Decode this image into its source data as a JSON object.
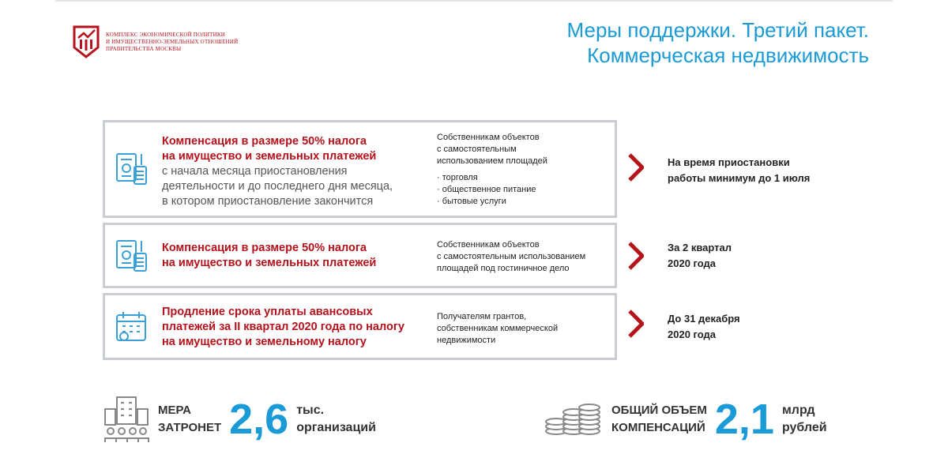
{
  "header": {
    "logo_text": [
      "Комплекс экономической политики",
      "и имущественно-земельных отношений",
      "правительства Москвы"
    ],
    "title_line1": "Меры поддержки. Третий пакет.",
    "title_line2": "Коммерческая недвижимость"
  },
  "colors": {
    "accent_red": "#b5121b",
    "accent_blue": "#1a9ad6",
    "border": "#c9ccd1"
  },
  "measures": [
    {
      "icon": "document-calculator-icon",
      "title": [
        "Компенсация в размере 50% налога",
        "на имущество и земельных платежей"
      ],
      "detail": [
        "с начала месяца приостановления",
        "деятельности и до последнего дня месяца,",
        "в котором приостановление закончится"
      ],
      "recipients": [
        "Собственникам объектов",
        "с самостоятельным",
        "использованием площадей"
      ],
      "bullets": [
        "· торговля",
        "· общественное питание",
        "· бытовые услуги"
      ],
      "term": [
        "На время приостановки",
        "работы минимум до 1 июля"
      ]
    },
    {
      "icon": "document-calculator-icon",
      "title": [
        "Компенсация в размере 50% налога",
        "на имущество и земельных платежей"
      ],
      "recipients": [
        "Собственникам объектов",
        "с самостоятельным использованием",
        "площадей под гостиничное дело"
      ],
      "term": [
        "За 2 квартал",
        "2020 года"
      ]
    },
    {
      "icon": "calendar-icon",
      "title": [
        "Продление срока уплаты авансовых",
        "платежей за II квартал 2020 года по налогу",
        "на имущество и земельному налогу"
      ],
      "recipients": [
        "Получателям грантов,",
        "собственникам коммерческой",
        "недвижимости"
      ],
      "term": [
        "До 31 декабря",
        "2020 года"
      ]
    }
  ],
  "stats": [
    {
      "icon": "buildings-people-icon",
      "label": [
        "Мера",
        "затронет"
      ],
      "value": "2,6",
      "unit": [
        "тыс.",
        "организаций"
      ]
    },
    {
      "icon": "coins-icon",
      "label": [
        "Общий объем",
        "компенсаций"
      ],
      "value": "2,1",
      "unit": [
        "млрд",
        "рублей"
      ]
    }
  ]
}
